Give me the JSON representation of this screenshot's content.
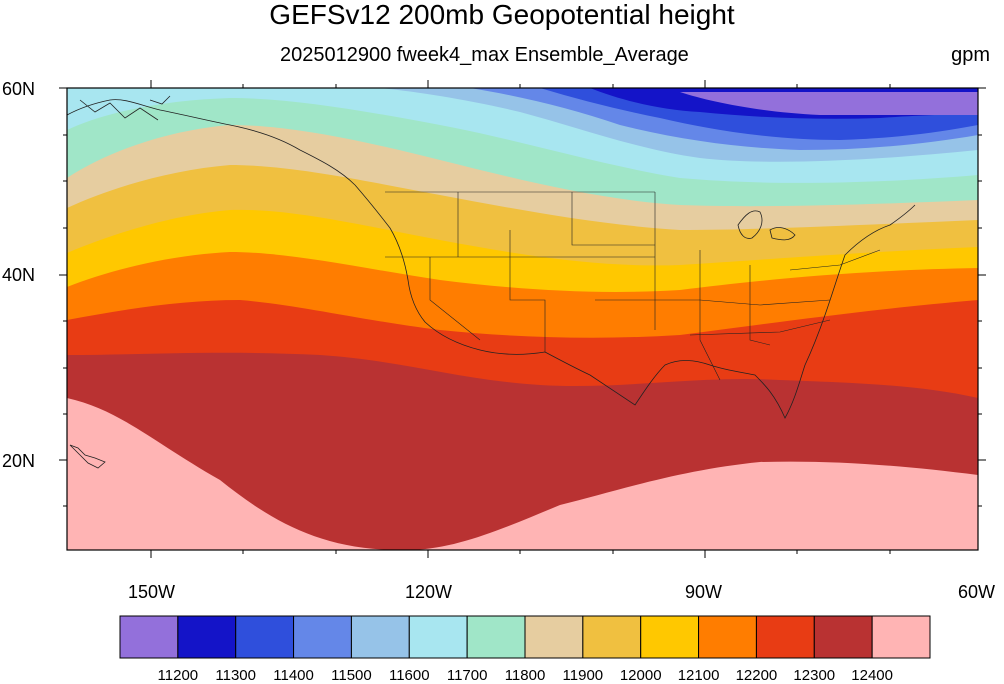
{
  "title": "GEFSv12 200mb Geopotential height",
  "subtitle": "2025012900 fweek4_max Ensemble_Average",
  "units": "gpm",
  "lat_labels": [
    "60N",
    "40N",
    "20N"
  ],
  "lon_labels": [
    "150W",
    "120W",
    "90W",
    "60W"
  ],
  "colorbar": {
    "colors": [
      "#9370db",
      "#1414c8",
      "#2f4fdc",
      "#6487e8",
      "#96c3e8",
      "#a8e6f0",
      "#a0e6c8",
      "#e6cda0",
      "#f0c040",
      "#ffc800",
      "#ff7d00",
      "#e83c14",
      "#b93232",
      "#ffb4b4"
    ],
    "labels": [
      "11200",
      "11300",
      "11400",
      "11500",
      "11600",
      "11700",
      "11800",
      "11900",
      "12000",
      "12100",
      "12200",
      "12300",
      "12400"
    ]
  }
}
